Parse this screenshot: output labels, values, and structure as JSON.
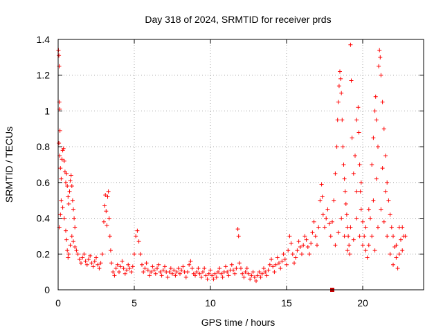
{
  "chart_data": {
    "type": "scatter",
    "title": "Day 318 of 2024, SRMTID for receiver prds",
    "xlabel": "GPS time / hours",
    "ylabel": "SRMTID / TECUs",
    "xlim": [
      0,
      24
    ],
    "ylim": [
      0,
      1.4
    ],
    "x_ticks": [
      0,
      5,
      10,
      15,
      20
    ],
    "x_tick_labels": [
      "0",
      "5",
      "10",
      "15",
      "20"
    ],
    "y_ticks": [
      0,
      0.2,
      0.4,
      0.6,
      0.8,
      1.0,
      1.2,
      1.4
    ],
    "y_tick_labels": [
      "0",
      "0.2",
      "0.4",
      "0.6",
      "0.8",
      "1",
      "1.2",
      "1.4"
    ],
    "grid": true,
    "marker": "plus",
    "series_color": "#ff0000",
    "marker_point": {
      "x": 18.0,
      "y": 0.0,
      "color": "#cc0000"
    },
    "series": [
      {
        "name": "SRMTID",
        "points": [
          [
            0.02,
            1.34
          ],
          [
            0.05,
            1.31
          ],
          [
            0.07,
            1.25
          ],
          [
            0.08,
            1.05
          ],
          [
            0.1,
            1.01
          ],
          [
            0.12,
            0.89
          ],
          [
            0.05,
            0.82
          ],
          [
            0.1,
            0.75
          ],
          [
            0.15,
            0.68
          ],
          [
            0.2,
            0.62
          ],
          [
            0.25,
            0.73
          ],
          [
            0.3,
            0.78
          ],
          [
            0.35,
            0.79
          ],
          [
            0.4,
            0.72
          ],
          [
            0.45,
            0.66
          ],
          [
            0.5,
            0.6
          ],
          [
            0.55,
            0.65
          ],
          [
            0.6,
            0.58
          ],
          [
            0.65,
            0.52
          ],
          [
            0.7,
            0.48
          ],
          [
            0.75,
            0.55
          ],
          [
            0.8,
            0.61
          ],
          [
            0.85,
            0.64
          ],
          [
            0.9,
            0.58
          ],
          [
            0.95,
            0.5
          ],
          [
            1.0,
            0.45
          ],
          [
            1.05,
            0.4
          ],
          [
            1.1,
            0.35
          ],
          [
            0.08,
            0.35
          ],
          [
            0.15,
            0.42
          ],
          [
            0.2,
            0.5
          ],
          [
            0.3,
            0.46
          ],
          [
            0.4,
            0.4
          ],
          [
            0.5,
            0.33
          ],
          [
            0.55,
            0.28
          ],
          [
            0.6,
            0.22
          ],
          [
            0.65,
            0.18
          ],
          [
            0.7,
            0.2
          ],
          [
            0.8,
            0.25
          ],
          [
            0.9,
            0.3
          ],
          [
            1.0,
            0.27
          ],
          [
            1.1,
            0.24
          ],
          [
            1.2,
            0.22
          ],
          [
            1.3,
            0.2
          ],
          [
            1.4,
            0.17
          ],
          [
            1.5,
            0.15
          ],
          [
            1.6,
            0.18
          ],
          [
            1.7,
            0.2
          ],
          [
            1.8,
            0.16
          ],
          [
            1.9,
            0.14
          ],
          [
            2.0,
            0.17
          ],
          [
            2.1,
            0.19
          ],
          [
            2.2,
            0.15
          ],
          [
            2.3,
            0.13
          ],
          [
            2.4,
            0.16
          ],
          [
            2.5,
            0.18
          ],
          [
            2.6,
            0.14
          ],
          [
            2.7,
            0.12
          ],
          [
            2.8,
            0.15
          ],
          [
            2.9,
            0.2
          ],
          [
            3.0,
            0.38
          ],
          [
            3.05,
            0.47
          ],
          [
            3.1,
            0.53
          ],
          [
            3.15,
            0.44
          ],
          [
            3.2,
            0.36
          ],
          [
            3.25,
            0.52
          ],
          [
            3.3,
            0.55
          ],
          [
            3.35,
            0.4
          ],
          [
            3.4,
            0.3
          ],
          [
            3.45,
            0.22
          ],
          [
            3.5,
            0.15
          ],
          [
            3.6,
            0.1
          ],
          [
            3.7,
            0.08
          ],
          [
            3.8,
            0.12
          ],
          [
            3.9,
            0.14
          ],
          [
            4.0,
            0.1
          ],
          [
            4.1,
            0.13
          ],
          [
            4.2,
            0.16
          ],
          [
            4.3,
            0.12
          ],
          [
            4.4,
            0.09
          ],
          [
            4.5,
            0.11
          ],
          [
            4.6,
            0.14
          ],
          [
            4.7,
            0.12
          ],
          [
            4.8,
            0.1
          ],
          [
            4.9,
            0.13
          ],
          [
            5.0,
            0.2
          ],
          [
            5.1,
            0.3
          ],
          [
            5.2,
            0.33
          ],
          [
            5.3,
            0.27
          ],
          [
            5.4,
            0.2
          ],
          [
            5.5,
            0.14
          ],
          [
            5.6,
            0.1
          ],
          [
            5.7,
            0.12
          ],
          [
            5.8,
            0.15
          ],
          [
            5.9,
            0.11
          ],
          [
            6.0,
            0.08
          ],
          [
            6.1,
            0.1
          ],
          [
            6.2,
            0.13
          ],
          [
            6.3,
            0.11
          ],
          [
            6.4,
            0.09
          ],
          [
            6.5,
            0.12
          ],
          [
            6.6,
            0.14
          ],
          [
            6.7,
            0.1
          ],
          [
            6.8,
            0.08
          ],
          [
            6.9,
            0.11
          ],
          [
            7.0,
            0.13
          ],
          [
            7.1,
            0.1
          ],
          [
            7.2,
            0.07
          ],
          [
            7.3,
            0.1
          ],
          [
            7.4,
            0.12
          ],
          [
            7.5,
            0.09
          ],
          [
            7.6,
            0.11
          ],
          [
            7.7,
            0.08
          ],
          [
            7.8,
            0.1
          ],
          [
            7.9,
            0.12
          ],
          [
            8.0,
            0.09
          ],
          [
            8.1,
            0.11
          ],
          [
            8.2,
            0.13
          ],
          [
            8.3,
            0.1
          ],
          [
            8.4,
            0.07
          ],
          [
            8.5,
            0.1
          ],
          [
            8.6,
            0.14
          ],
          [
            8.7,
            0.16
          ],
          [
            8.8,
            0.12
          ],
          [
            8.9,
            0.09
          ],
          [
            9.0,
            0.08
          ],
          [
            9.1,
            0.1
          ],
          [
            9.2,
            0.12
          ],
          [
            9.3,
            0.09
          ],
          [
            9.4,
            0.07
          ],
          [
            9.5,
            0.1
          ],
          [
            9.6,
            0.12
          ],
          [
            9.7,
            0.08
          ],
          [
            9.8,
            0.06
          ],
          [
            9.9,
            0.09
          ],
          [
            10.0,
            0.11
          ],
          [
            10.1,
            0.08
          ],
          [
            10.2,
            0.06
          ],
          [
            10.3,
            0.09
          ],
          [
            10.4,
            0.07
          ],
          [
            10.5,
            0.1
          ],
          [
            10.6,
            0.12
          ],
          [
            10.7,
            0.09
          ],
          [
            10.8,
            0.07
          ],
          [
            10.9,
            0.1
          ],
          [
            11.0,
            0.13
          ],
          [
            11.1,
            0.1
          ],
          [
            11.2,
            0.08
          ],
          [
            11.3,
            0.11
          ],
          [
            11.4,
            0.14
          ],
          [
            11.5,
            0.11
          ],
          [
            11.6,
            0.09
          ],
          [
            11.7,
            0.12
          ],
          [
            11.8,
            0.34
          ],
          [
            11.85,
            0.3
          ],
          [
            11.9,
            0.15
          ],
          [
            12.0,
            0.12
          ],
          [
            12.1,
            0.09
          ],
          [
            12.2,
            0.07
          ],
          [
            12.3,
            0.1
          ],
          [
            12.4,
            0.12
          ],
          [
            12.5,
            0.09
          ],
          [
            12.6,
            0.06
          ],
          [
            12.7,
            0.08
          ],
          [
            12.8,
            0.1
          ],
          [
            12.9,
            0.07
          ],
          [
            13.0,
            0.05
          ],
          [
            13.1,
            0.08
          ],
          [
            13.2,
            0.1
          ],
          [
            13.3,
            0.07
          ],
          [
            13.4,
            0.09
          ],
          [
            13.5,
            0.12
          ],
          [
            13.6,
            0.1
          ],
          [
            13.7,
            0.08
          ],
          [
            13.8,
            0.11
          ],
          [
            13.9,
            0.14
          ],
          [
            14.0,
            0.17
          ],
          [
            14.1,
            0.13
          ],
          [
            14.2,
            0.1
          ],
          [
            14.3,
            0.14
          ],
          [
            14.4,
            0.18
          ],
          [
            14.5,
            0.15
          ],
          [
            14.6,
            0.12
          ],
          [
            14.7,
            0.16
          ],
          [
            14.8,
            0.2
          ],
          [
            14.9,
            0.17
          ],
          [
            15.0,
            0.14
          ],
          [
            15.1,
            0.22
          ],
          [
            15.2,
            0.3
          ],
          [
            15.3,
            0.26
          ],
          [
            15.4,
            0.2
          ],
          [
            15.5,
            0.15
          ],
          [
            15.6,
            0.18
          ],
          [
            15.7,
            0.22
          ],
          [
            15.8,
            0.27
          ],
          [
            15.9,
            0.24
          ],
          [
            16.0,
            0.2
          ],
          [
            16.1,
            0.25
          ],
          [
            16.2,
            0.3
          ],
          [
            16.3,
            0.28
          ],
          [
            16.4,
            0.24
          ],
          [
            16.5,
            0.2
          ],
          [
            16.6,
            0.26
          ],
          [
            16.7,
            0.32
          ],
          [
            16.8,
            0.38
          ],
          [
            16.9,
            0.3
          ],
          [
            17.0,
            0.25
          ],
          [
            17.1,
            0.35
          ],
          [
            17.2,
            0.5
          ],
          [
            17.3,
            0.59
          ],
          [
            17.35,
            0.52
          ],
          [
            17.4,
            0.42
          ],
          [
            17.5,
            0.35
          ],
          [
            17.6,
            0.4
          ],
          [
            17.7,
            0.45
          ],
          [
            17.8,
            0.37
          ],
          [
            17.9,
            0.3
          ],
          [
            18.0,
            0.38
          ],
          [
            18.1,
            0.5
          ],
          [
            18.2,
            0.65
          ],
          [
            18.3,
            0.8
          ],
          [
            18.35,
            0.95
          ],
          [
            18.4,
            1.05
          ],
          [
            18.45,
            1.14
          ],
          [
            18.5,
            1.22
          ],
          [
            18.55,
            1.18
          ],
          [
            18.6,
            1.1
          ],
          [
            18.65,
            0.95
          ],
          [
            18.7,
            0.8
          ],
          [
            18.75,
            0.7
          ],
          [
            18.8,
            0.62
          ],
          [
            18.85,
            0.55
          ],
          [
            18.9,
            0.48
          ],
          [
            18.95,
            0.42
          ],
          [
            19.0,
            0.35
          ],
          [
            19.05,
            0.3
          ],
          [
            19.1,
            0.25
          ],
          [
            19.15,
            0.2
          ],
          [
            19.2,
            1.37
          ],
          [
            19.25,
            1.17
          ],
          [
            19.3,
            0.85
          ],
          [
            19.4,
            0.65
          ],
          [
            19.5,
            0.75
          ],
          [
            19.6,
            0.95
          ],
          [
            19.7,
            1.02
          ],
          [
            19.75,
            0.88
          ],
          [
            19.8,
            0.7
          ],
          [
            19.85,
            0.55
          ],
          [
            19.9,
            0.45
          ],
          [
            20.0,
            0.38
          ],
          [
            20.1,
            0.3
          ],
          [
            20.2,
            0.22
          ],
          [
            20.3,
            0.18
          ],
          [
            20.4,
            0.25
          ],
          [
            20.5,
            0.4
          ],
          [
            20.6,
            0.7
          ],
          [
            20.7,
            0.85
          ],
          [
            20.8,
            1.0
          ],
          [
            20.85,
            1.08
          ],
          [
            20.9,
            0.95
          ],
          [
            21.0,
            0.8
          ],
          [
            21.05,
            1.25
          ],
          [
            21.1,
            1.34
          ],
          [
            21.15,
            1.3
          ],
          [
            21.2,
            1.2
          ],
          [
            21.3,
            1.05
          ],
          [
            21.4,
            0.9
          ],
          [
            21.5,
            0.75
          ],
          [
            21.6,
            0.6
          ],
          [
            21.7,
            0.5
          ],
          [
            21.8,
            0.42
          ],
          [
            21.9,
            0.35
          ],
          [
            22.0,
            0.3
          ],
          [
            22.1,
            0.24
          ],
          [
            22.2,
            0.18
          ],
          [
            22.3,
            0.12
          ],
          [
            22.4,
            0.2
          ],
          [
            22.5,
            0.28
          ],
          [
            22.6,
            0.35
          ],
          [
            22.7,
            0.3
          ],
          [
            18.2,
            0.25
          ],
          [
            18.4,
            0.32
          ],
          [
            18.6,
            0.4
          ],
          [
            18.8,
            0.3
          ],
          [
            19.0,
            0.22
          ],
          [
            19.2,
            0.35
          ],
          [
            19.4,
            0.28
          ],
          [
            19.6,
            0.4
          ],
          [
            19.8,
            0.3
          ],
          [
            20.0,
            0.25
          ],
          [
            20.2,
            0.35
          ],
          [
            20.4,
            0.45
          ],
          [
            20.6,
            0.3
          ],
          [
            20.8,
            0.22
          ],
          [
            21.0,
            0.35
          ],
          [
            21.2,
            0.45
          ],
          [
            21.4,
            0.38
          ],
          [
            21.6,
            0.3
          ],
          [
            21.8,
            0.2
          ],
          [
            22.0,
            0.14
          ],
          [
            22.2,
            0.25
          ],
          [
            22.4,
            0.35
          ],
          [
            22.6,
            0.22
          ],
          [
            22.8,
            0.3
          ],
          [
            21.3,
            0.68
          ],
          [
            21.5,
            0.55
          ],
          [
            20.9,
            0.62
          ],
          [
            20.7,
            0.5
          ],
          [
            19.9,
            0.6
          ],
          [
            19.6,
            0.55
          ]
        ]
      }
    ]
  }
}
